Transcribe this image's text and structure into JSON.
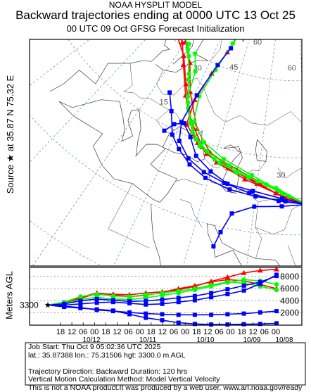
{
  "header": {
    "line1": "NOAA HYSPLIT MODEL",
    "line2": "Backward trajectories ending at 0000 UTC 13 Oct 25",
    "line3": "00 UTC 09 Oct    GFSG  Forecast Initialization"
  },
  "source_label": "Source ★ at    35.87 N    75.32 E",
  "info_lines": [
    "Job Start: Thu Oct  9 05:02:36 UTC 2025",
    "lat.: 35.87388   lon.: 75.31506   hgt: 3300.0 m AGL",
    "",
    "Trajectory Direction: Backward       Duration: 120 hrs",
    "Vertical Motion Calculation Method: Model Vertical Velocity",
    "This is not a NOAA product.It was produced by a web user. www.arl.noaa.gov/ready"
  ],
  "colors": {
    "red": "#ff0000",
    "blue": "#0000ff",
    "green": "#00ff00",
    "grid": "#6f9ec4",
    "border": "#3a3a3a"
  },
  "chart_data": [
    {
      "type": "line",
      "id": "map",
      "description_axis": "trajectory map in longitude/latitude",
      "grid_labels": [
        "75",
        "60",
        "45",
        "30",
        "15",
        "60",
        "30"
      ],
      "source": {
        "lat": 35.87,
        "lon": 75.32,
        "marker": "star"
      },
      "series": [
        {
          "color": "red",
          "marker": "triangle",
          "points": [
            [
              75.3,
              35.9
            ],
            [
              68,
              37.5
            ],
            [
              60,
              39.5
            ],
            [
              50,
              41.5
            ],
            [
              42,
              43
            ],
            [
              35,
              46
            ],
            [
              27,
              52
            ],
            [
              20,
              57
            ],
            [
              14,
              60.5
            ],
            [
              10,
              61.5
            ],
            [
              0,
              60.5
            ]
          ]
        },
        {
          "color": "red",
          "marker": "triangle",
          "points": [
            [
              75.3,
              35.9
            ],
            [
              67,
              38.5
            ],
            [
              58,
              40.5
            ],
            [
              48,
              42.5
            ],
            [
              40,
              44
            ],
            [
              33,
              48
            ],
            [
              25,
              54
            ],
            [
              18,
              58.5
            ],
            [
              10,
              61
            ]
          ]
        },
        {
          "color": "red",
          "marker": "triangle",
          "points": [
            [
              75.3,
              35.9
            ],
            [
              66,
              38
            ],
            [
              56,
              40
            ],
            [
              46,
              42
            ],
            [
              38,
              44.5
            ],
            [
              32,
              47
            ],
            [
              31,
              52
            ],
            [
              33,
              58
            ],
            [
              36,
              63
            ],
            [
              38,
              67
            ]
          ]
        },
        {
          "color": "red",
          "marker": "triangle",
          "points": [
            [
              75.3,
              35.9
            ],
            [
              69,
              37
            ],
            [
              61,
              39.5
            ],
            [
              51,
              41.5
            ],
            [
              43,
              43.5
            ],
            [
              36,
              47
            ],
            [
              28,
              53
            ],
            [
              22,
              58
            ],
            [
              15,
              61
            ]
          ]
        },
        {
          "color": "green",
          "marker": "circle",
          "points": [
            [
              75.3,
              35.9
            ],
            [
              68,
              38
            ],
            [
              60,
              40
            ],
            [
              50,
              42
            ],
            [
              42,
              43.5
            ],
            [
              35,
              46
            ],
            [
              29,
              51
            ],
            [
              24,
              56
            ],
            [
              18,
              60
            ],
            [
              13,
              62
            ]
          ]
        },
        {
          "color": "green",
          "marker": "circle",
          "points": [
            [
              75.3,
              35.9
            ],
            [
              67,
              38.5
            ],
            [
              58,
              41
            ],
            [
              48,
              43
            ],
            [
              40,
              45
            ],
            [
              34,
              48
            ],
            [
              32,
              53
            ],
            [
              34,
              59
            ],
            [
              37,
              65
            ],
            [
              40,
              68
            ]
          ]
        },
        {
          "color": "green",
          "marker": "circle",
          "points": [
            [
              75.3,
              35.9
            ],
            [
              70,
              37.5
            ],
            [
              63,
              39.5
            ],
            [
              53,
              41
            ],
            [
              45,
              42.5
            ],
            [
              37,
              45
            ],
            [
              30,
              50
            ],
            [
              25,
              55
            ],
            [
              20,
              59
            ],
            [
              17,
              61
            ]
          ]
        },
        {
          "color": "green",
          "marker": "circle",
          "points": [
            [
              75.3,
              35.9
            ],
            [
              66,
              39
            ],
            [
              57,
              40.5
            ],
            [
              47,
              42
            ],
            [
              39,
              44
            ],
            [
              33,
              47.5
            ],
            [
              28,
              52
            ],
            [
              26,
              57
            ],
            [
              22,
              60
            ]
          ]
        },
        {
          "color": "blue",
          "marker": "square",
          "points": [
            [
              75.3,
              35.9
            ],
            [
              69,
              36.5
            ],
            [
              60,
              37
            ],
            [
              52,
              37.5
            ],
            [
              44,
              38.5
            ],
            [
              38,
              40
            ],
            [
              33,
              42
            ],
            [
              29,
              44
            ],
            [
              25,
              48
            ],
            [
              21,
              51
            ]
          ]
        },
        {
          "color": "blue",
          "marker": "square",
          "points": [
            [
              75.3,
              35.9
            ],
            [
              68,
              35.5
            ],
            [
              60,
              35
            ],
            [
              54,
              33
            ],
            [
              52,
              29
            ],
            [
              51,
              26
            ]
          ]
        },
        {
          "color": "blue",
          "marker": "square",
          "points": [
            [
              75.3,
              35.9
            ],
            [
              67,
              36.5
            ],
            [
              58,
              37.5
            ],
            [
              50,
              38.5
            ],
            [
              43,
              39.5
            ],
            [
              37,
              41
            ],
            [
              32,
              43.5
            ],
            [
              30,
              47
            ],
            [
              31,
              53
            ],
            [
              34,
              60
            ],
            [
              37,
              64
            ]
          ]
        },
        {
          "color": "blue",
          "marker": "square",
          "points": [
            [
              75.3,
              35.9
            ],
            [
              68,
              37
            ],
            [
              59,
              38
            ],
            [
              51,
              38.5
            ],
            [
              45,
              40
            ],
            [
              39,
              42
            ],
            [
              35,
              45
            ],
            [
              31,
              47
            ],
            [
              28,
              46
            ],
            [
              26,
              44
            ]
          ]
        }
      ]
    },
    {
      "type": "line",
      "id": "height",
      "ylabel": "Meters AGL",
      "yticks": [
        2000,
        4000,
        6000,
        8000
      ],
      "ylim": [
        0,
        9500
      ],
      "start_value_label": "3300",
      "x_tick_hours": [
        "18",
        "12",
        "06",
        "00",
        "18",
        "12",
        "06",
        "00",
        "18",
        "12",
        "06",
        "00",
        "18",
        "12",
        "06",
        "00",
        "18",
        "12",
        "06",
        "00"
      ],
      "x_date_labels": [
        "10/12",
        "10/11",
        "10/10",
        "10/09",
        "10/08"
      ],
      "series": [
        {
          "color": "red",
          "values": [
            3300,
            3600,
            4400,
            5200,
            5100,
            5000,
            5300,
            5500,
            5800,
            6400,
            7200,
            7900,
            8600,
            9000,
            9200
          ]
        },
        {
          "color": "red",
          "values": [
            3300,
            3700,
            4600,
            5300,
            5000,
            4700,
            4900,
            5400,
            6000,
            6500,
            7100,
            7500,
            7300,
            6700,
            6000
          ]
        },
        {
          "color": "green",
          "values": [
            3300,
            3800,
            4700,
            5100,
            4800,
            4700,
            5000,
            5300,
            5600,
            6000,
            6600,
            7100,
            6900,
            6400,
            5800
          ]
        },
        {
          "color": "green",
          "values": [
            3300,
            3600,
            4200,
            4600,
            4300,
            4200,
            4500,
            4900,
            5300,
            5800,
            6400,
            7000,
            7500,
            7300,
            6700
          ]
        },
        {
          "color": "blue",
          "values": [
            3300,
            3100,
            2900,
            2500,
            2300,
            2100,
            1900,
            1800,
            1700,
            1700,
            1700,
            1800,
            1900,
            2100,
            2300
          ]
        },
        {
          "color": "blue",
          "values": [
            3300,
            3300,
            3500,
            3700,
            3800,
            3600,
            3400,
            3500,
            3800,
            4100,
            4600,
            5100,
            5700,
            6800,
            8300
          ]
        },
        {
          "color": "blue",
          "values": [
            3300,
            3500,
            4000,
            4300,
            4100,
            3900,
            4000,
            4200,
            4500,
            4800,
            5300,
            5900,
            6500,
            7100,
            8100
          ]
        },
        {
          "color": "blue",
          "values": [
            3300,
            3000,
            2800,
            2600,
            2400,
            1800,
            1200,
            800,
            400,
            200,
            100,
            100,
            150,
            200,
            300
          ]
        }
      ]
    }
  ]
}
